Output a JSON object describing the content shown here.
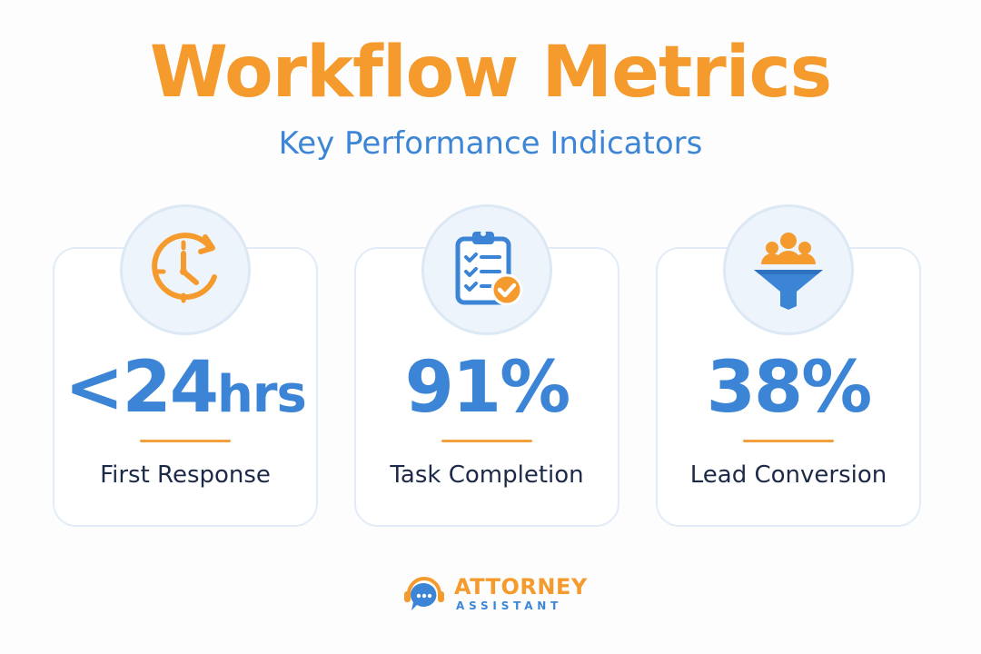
{
  "header": {
    "title": "Workflow Metrics",
    "subtitle": "Key Performance Indicators"
  },
  "metrics": [
    {
      "icon": "clock-icon",
      "prefix": "<",
      "value": "24",
      "unit": "hrs",
      "label": "First Response"
    },
    {
      "icon": "clipboard-checklist-icon",
      "prefix": "",
      "value": "91%",
      "unit": "",
      "label": "Task Completion"
    },
    {
      "icon": "people-funnel-icon",
      "prefix": "",
      "value": "38%",
      "unit": "",
      "label": "Lead Conversion"
    }
  ],
  "brand": {
    "name": "ATTORNEY",
    "tagline": "ASSISTANT"
  },
  "colors": {
    "accent_orange": "#f59a2c",
    "accent_blue": "#3b84d6",
    "text_dark": "#1c2a48",
    "card_border": "#e2ebf6",
    "icon_bg": "#eef4fb"
  }
}
